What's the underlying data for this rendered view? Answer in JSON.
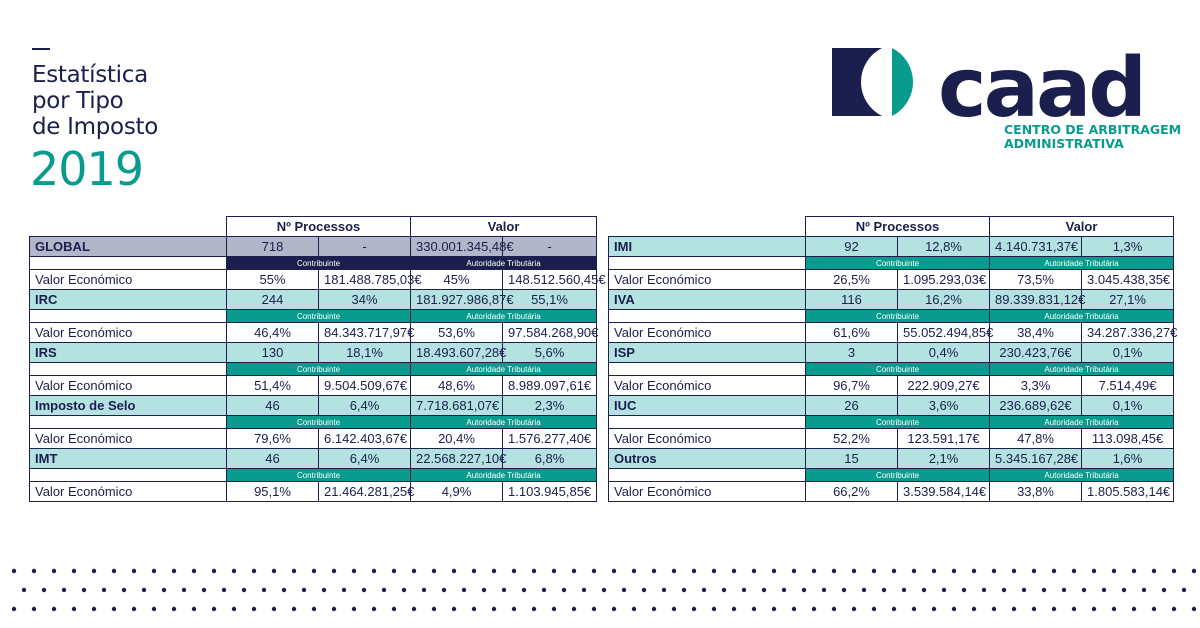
{
  "header": {
    "title_lines": [
      "Estatística",
      "por Tipo",
      "de Imposto"
    ],
    "year": "2019"
  },
  "logo": {
    "wordmark": "caad",
    "sub_line1": "CENTRO DE ARBITRAGEM",
    "sub_line2": "ADMINISTRATIVA",
    "colors": {
      "navy": "#1a1f4d",
      "teal": "#0a9b8f"
    }
  },
  "table_headers": {
    "processos": "Nº Processos",
    "valor": "Valor"
  },
  "sub_labels": {
    "contribuinte": "Contribuinte",
    "autoridade": "Autoridade Tributária"
  },
  "value_label": "Valor Económico",
  "left": [
    {
      "name": "GLOBAL",
      "proc": "718",
      "proc_pct": "-",
      "valor": "330.001.345,48€",
      "valor_pct": "-",
      "ve": [
        "55%",
        "181.488.785,03€",
        "45%",
        "148.512.560,45€"
      ]
    },
    {
      "name": "IRC",
      "proc": "244",
      "proc_pct": "34%",
      "valor": "181.927.986,87€",
      "valor_pct": "55,1%",
      "ve": [
        "46,4%",
        "84.343.717,97€",
        "53,6%",
        "97.584.268,90€"
      ]
    },
    {
      "name": "IRS",
      "proc": "130",
      "proc_pct": "18,1%",
      "valor": "18.493.607,28€",
      "valor_pct": "5,6%",
      "ve": [
        "51,4%",
        "9.504.509,67€",
        "48,6%",
        "8.989.097,61€"
      ]
    },
    {
      "name": "Imposto de Selo",
      "proc": "46",
      "proc_pct": "6,4%",
      "valor": "7.718.681,07€",
      "valor_pct": "2,3%",
      "ve": [
        "79,6%",
        "6.142.403,67€",
        "20,4%",
        "1.576.277,40€"
      ]
    },
    {
      "name": "IMT",
      "proc": "46",
      "proc_pct": "6,4%",
      "valor": "22.568.227,10€",
      "valor_pct": "6,8%",
      "ve": [
        "95,1%",
        "21.464.281,25€",
        "4,9%",
        "1.103.945,85€"
      ]
    }
  ],
  "right": [
    {
      "name": "IMI",
      "proc": "92",
      "proc_pct": "12,8%",
      "valor": "4.140.731,37€",
      "valor_pct": "1,3%",
      "ve": [
        "26,5%",
        "1.095.293,03€",
        "73,5%",
        "3.045.438,35€"
      ]
    },
    {
      "name": "IVA",
      "proc": "116",
      "proc_pct": "16,2%",
      "valor": "89.339.831,12€",
      "valor_pct": "27,1%",
      "ve": [
        "61,6%",
        "55.052.494,85€",
        "38,4%",
        "34.287.336,27€"
      ]
    },
    {
      "name": "ISP",
      "proc": "3",
      "proc_pct": "0,4%",
      "valor": "230.423,76€",
      "valor_pct": "0,1%",
      "ve": [
        "96,7%",
        "222.909,27€",
        "3,3%",
        "7.514,49€"
      ]
    },
    {
      "name": "IUC",
      "proc": "26",
      "proc_pct": "3,6%",
      "valor": "236.689,62€",
      "valor_pct": "0,1%",
      "ve": [
        "52,2%",
        "123.591,17€",
        "47,8%",
        "113.098,45€"
      ]
    },
    {
      "name": "Outros",
      "proc": "15",
      "proc_pct": "2,1%",
      "valor": "5.345.167,28€",
      "valor_pct": "1,6%",
      "ve": [
        "66,2%",
        "3.539.584,14€",
        "33,8%",
        "1.805.583,14€"
      ]
    }
  ]
}
